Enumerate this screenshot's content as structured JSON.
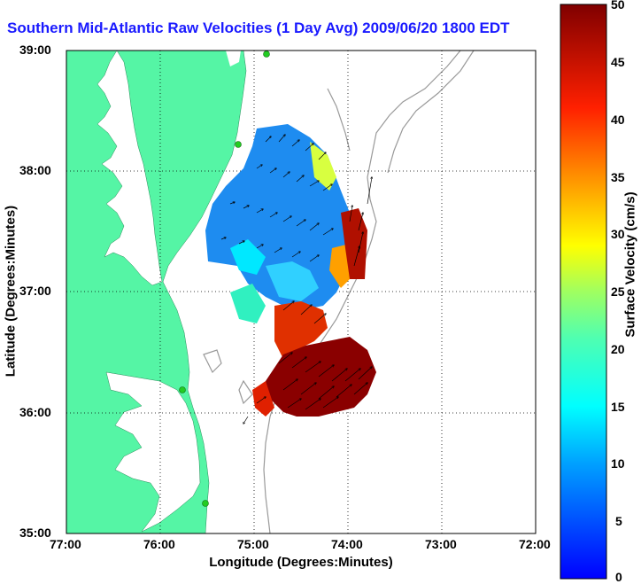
{
  "title": "Southern Mid-Atlantic Raw Velocities (1 Day Avg) 2009/06/20 1800 EDT",
  "map": {
    "xlabel": "Longitude (Degrees:Minutes)",
    "ylabel": "Latitude (Degrees:Minutes)",
    "xticks": [
      "77:00",
      "76:00",
      "75:00",
      "74:00",
      "73:00",
      "72:00"
    ],
    "yticks": [
      "39:00",
      "38:00",
      "37:00",
      "36:00",
      "35:00"
    ],
    "lon_range": [
      -77,
      -72
    ],
    "lat_range": [
      35,
      39
    ],
    "land_color": "#55f5a5",
    "water_color": "#ffffff",
    "grid": "dotted",
    "station_color": "#22cc22"
  },
  "colorbar": {
    "label": "Surface Velocity (cm/s)",
    "ticks": [
      "0",
      "5",
      "10",
      "15",
      "20",
      "25",
      "30",
      "35",
      "40",
      "45",
      "50"
    ],
    "range": [
      0,
      50
    ],
    "colormap": "jet"
  }
}
